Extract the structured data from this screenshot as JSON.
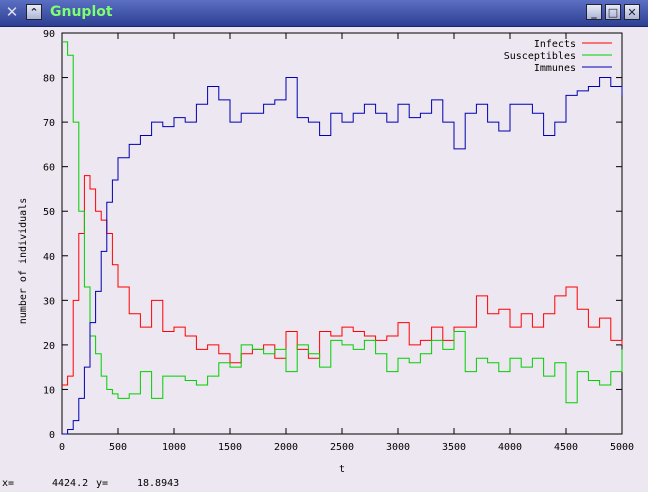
{
  "window": {
    "title": "Gnuplot"
  },
  "titlebar_buttons": {
    "menu_icon": "✕",
    "collapse_icon": "⌃",
    "minimize_icon": "_",
    "maximize_icon": "□",
    "close_icon": "✕"
  },
  "status": {
    "x_label": "x=",
    "x_value": "4424.2",
    "y_label": "y=",
    "y_value": "18.8943"
  },
  "colors": {
    "infects": "#ff0000",
    "susceptibles": "#00d000",
    "immunes": "#0000b0"
  },
  "chart_data": {
    "type": "line",
    "xlabel": "t",
    "ylabel": "number of individuals",
    "xlim": [
      0,
      5000
    ],
    "ylim": [
      0,
      90
    ],
    "xticks": [
      0,
      500,
      1000,
      1500,
      2000,
      2500,
      3000,
      3500,
      4000,
      4500,
      5000
    ],
    "yticks": [
      0,
      10,
      20,
      30,
      40,
      50,
      60,
      70,
      80,
      90
    ],
    "legend_position": "top-right",
    "series": [
      {
        "name": "Infects",
        "x": [
          0,
          50,
          100,
          150,
          200,
          250,
          300,
          350,
          400,
          450,
          500,
          600,
          700,
          800,
          900,
          1000,
          1100,
          1200,
          1300,
          1400,
          1500,
          1600,
          1700,
          1800,
          1900,
          2000,
          2100,
          2200,
          2300,
          2400,
          2500,
          2600,
          2700,
          2800,
          2900,
          3000,
          3100,
          3200,
          3300,
          3400,
          3500,
          3600,
          3700,
          3800,
          3900,
          4000,
          4100,
          4200,
          4300,
          4400,
          4500,
          4600,
          4700,
          4800,
          4900,
          5000
        ],
        "y": [
          11,
          13,
          30,
          45,
          58,
          55,
          50,
          48,
          45,
          38,
          33,
          27,
          24,
          30,
          23,
          24,
          22,
          19,
          20,
          18,
          16,
          18,
          19,
          20,
          17,
          23,
          19,
          17,
          23,
          22,
          24,
          23,
          22,
          21,
          22,
          25,
          20,
          21,
          24,
          21,
          24,
          24,
          31,
          27,
          28,
          24,
          27,
          24,
          27,
          31,
          33,
          28,
          24,
          26,
          21,
          20
        ]
      },
      {
        "name": "Susceptibles",
        "x": [
          0,
          50,
          100,
          150,
          200,
          250,
          300,
          350,
          400,
          450,
          500,
          600,
          700,
          800,
          900,
          1000,
          1100,
          1200,
          1300,
          1400,
          1500,
          1600,
          1700,
          1800,
          1900,
          2000,
          2100,
          2200,
          2300,
          2400,
          2500,
          2600,
          2700,
          2800,
          2900,
          3000,
          3100,
          3200,
          3300,
          3400,
          3500,
          3600,
          3700,
          3800,
          3900,
          4000,
          4100,
          4200,
          4300,
          4400,
          4500,
          4600,
          4700,
          4800,
          4900,
          5000
        ],
        "y": [
          88,
          85,
          70,
          50,
          33,
          22,
          18,
          13,
          10,
          9,
          8,
          9,
          14,
          8,
          13,
          13,
          12,
          11,
          13,
          16,
          15,
          20,
          19,
          18,
          19,
          14,
          20,
          18,
          15,
          21,
          20,
          19,
          21,
          18,
          14,
          17,
          16,
          18,
          21,
          19,
          23,
          14,
          17,
          16,
          14,
          17,
          15,
          17,
          13,
          16,
          7,
          14,
          12,
          11,
          14,
          19
        ]
      },
      {
        "name": "Immunes",
        "x": [
          0,
          50,
          100,
          150,
          200,
          250,
          300,
          350,
          400,
          450,
          500,
          600,
          700,
          800,
          900,
          1000,
          1100,
          1200,
          1300,
          1400,
          1500,
          1600,
          1700,
          1800,
          1900,
          2000,
          2100,
          2200,
          2300,
          2400,
          2500,
          2600,
          2700,
          2800,
          2900,
          3000,
          3100,
          3200,
          3300,
          3400,
          3500,
          3600,
          3700,
          3800,
          3900,
          4000,
          4100,
          4200,
          4300,
          4400,
          4500,
          4600,
          4700,
          4800,
          4900,
          5000
        ],
        "y": [
          0,
          1,
          3,
          8,
          15,
          25,
          32,
          41,
          52,
          57,
          62,
          65,
          67,
          70,
          69,
          71,
          70,
          74,
          78,
          75,
          70,
          72,
          72,
          74,
          75,
          80,
          71,
          70,
          67,
          72,
          70,
          72,
          74,
          72,
          70,
          74,
          71,
          72,
          75,
          70,
          64,
          72,
          74,
          70,
          68,
          74,
          74,
          72,
          67,
          70,
          76,
          77,
          78,
          80,
          78,
          76
        ]
      }
    ]
  }
}
